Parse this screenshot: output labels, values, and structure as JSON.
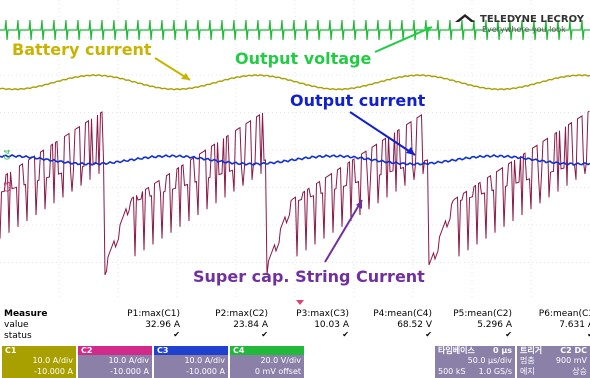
{
  "annotations": [
    "Battery current",
    "Output voltage",
    "Output current",
    "Super cap. String Current"
  ],
  "logo": {
    "brand": "TELEDYNE LECROY",
    "tagline": "Everywhere you look"
  },
  "channel_markers": [
    "C4",
    "C3"
  ],
  "measure": {
    "header": "Measure",
    "row_labels": [
      "value",
      "status"
    ],
    "params": [
      {
        "name": "P1:max(C1)",
        "value": "32.96 A"
      },
      {
        "name": "P2:max(C2)",
        "value": "23.84 A"
      },
      {
        "name": "P3:max(C3)",
        "value": "10.03 A"
      },
      {
        "name": "P4:mean(C4)",
        "value": "68.52 V"
      },
      {
        "name": "P5:mean(C2)",
        "value": "5.296 A"
      },
      {
        "name": "P6:mean(C3",
        "value": "7.631 A"
      }
    ]
  },
  "channels": [
    {
      "id": "C1",
      "scale": "10.0 A/div",
      "offset": "-10.000 A"
    },
    {
      "id": "C2",
      "scale": "10.0 A/div",
      "offset": "-10.000 A"
    },
    {
      "id": "C3",
      "scale": "10.0 A/div",
      "offset": "-10.000 A"
    },
    {
      "id": "C4",
      "scale": "20.0 V/div",
      "offset": "0 mV offset"
    }
  ],
  "timebase": {
    "label": "타임베이스",
    "delay": "0 µs",
    "per_div": "50.0 µs/div",
    "samples": "500 kS",
    "rate": "1.0 GS/s"
  },
  "trigger": {
    "label": "트리거",
    "channel": "C2 DC",
    "level": "900 mV",
    "mode": "멈춤",
    "type": "에지",
    "slope": "상승"
  }
}
